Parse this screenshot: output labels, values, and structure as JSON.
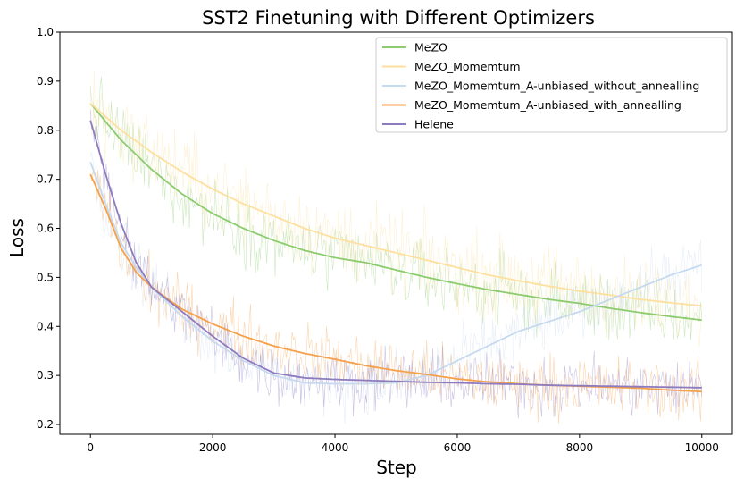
{
  "chart_data": {
    "type": "line",
    "title": "SST2 Finetuning with Different Optimizers",
    "xlabel": "Step",
    "ylabel": "Loss",
    "xlim": [
      -500,
      10500
    ],
    "ylim": [
      0.18,
      1.0
    ],
    "xticks": [
      0,
      2000,
      4000,
      6000,
      8000,
      10000
    ],
    "xtick_labels": [
      "0",
      "2000",
      "4000",
      "6000",
      "8000",
      "10000"
    ],
    "yticks": [
      0.2,
      0.3,
      0.4,
      0.5,
      0.6,
      0.7,
      0.8,
      0.9,
      1.0
    ],
    "ytick_labels": [
      "0.2",
      "0.3",
      "0.4",
      "0.5",
      "0.6",
      "0.7",
      "0.8",
      "0.9",
      "1.0"
    ],
    "grid": false,
    "legend_position": "top-right",
    "series": [
      {
        "name": "MeZO",
        "color": "#8ccb6e",
        "noise": 0.07,
        "x": [
          0,
          500,
          1000,
          1500,
          2000,
          2500,
          3000,
          3500,
          4000,
          4500,
          5000,
          5500,
          6000,
          6500,
          7000,
          7500,
          8000,
          8500,
          9000,
          9500,
          10000
        ],
        "values": [
          0.855,
          0.78,
          0.72,
          0.67,
          0.63,
          0.6,
          0.575,
          0.555,
          0.54,
          0.53,
          0.515,
          0.5,
          0.487,
          0.475,
          0.465,
          0.455,
          0.447,
          0.437,
          0.428,
          0.42,
          0.413
        ]
      },
      {
        "name": "MeZO_Momemtum",
        "color": "#fde09f",
        "noise": 0.08,
        "x": [
          0,
          500,
          1000,
          1500,
          2000,
          2500,
          3000,
          3500,
          4000,
          4500,
          5000,
          5500,
          6000,
          6500,
          7000,
          7500,
          8000,
          8500,
          9000,
          9500,
          10000
        ],
        "values": [
          0.855,
          0.8,
          0.755,
          0.715,
          0.68,
          0.65,
          0.625,
          0.6,
          0.58,
          0.565,
          0.55,
          0.535,
          0.52,
          0.505,
          0.493,
          0.482,
          0.472,
          0.464,
          0.455,
          0.448,
          0.442
        ]
      },
      {
        "name": "MeZO_Momemtum_A-unbiased_without_annealling",
        "color": "#c6d9ee",
        "noise": 0.06,
        "x": [
          0,
          250,
          500,
          750,
          1000,
          1500,
          2000,
          2500,
          3000,
          3500,
          4000,
          4500,
          5000,
          5500,
          6000,
          6500,
          7000,
          7500,
          8000,
          8500,
          9000,
          9500,
          10000
        ],
        "values": [
          0.735,
          0.65,
          0.57,
          0.52,
          0.48,
          0.42,
          0.37,
          0.33,
          0.3,
          0.285,
          0.283,
          0.283,
          0.285,
          0.3,
          0.33,
          0.36,
          0.39,
          0.41,
          0.43,
          0.455,
          0.48,
          0.505,
          0.525
        ]
      },
      {
        "name": "MeZO_Momemtum_A-unbiased_with_annealling",
        "color": "#f5a04a",
        "noise": 0.06,
        "x": [
          0,
          250,
          500,
          750,
          1000,
          1500,
          2000,
          2500,
          3000,
          3500,
          4000,
          4500,
          5000,
          5500,
          6000,
          6500,
          7000,
          7500,
          8000,
          8500,
          9000,
          9500,
          10000
        ],
        "values": [
          0.71,
          0.64,
          0.56,
          0.51,
          0.48,
          0.435,
          0.405,
          0.38,
          0.36,
          0.345,
          0.333,
          0.32,
          0.31,
          0.302,
          0.293,
          0.287,
          0.283,
          0.28,
          0.278,
          0.276,
          0.274,
          0.27,
          0.267
        ]
      },
      {
        "name": "Helene",
        "color": "#8c7bbf",
        "noise": 0.06,
        "x": [
          0,
          250,
          500,
          750,
          1000,
          1500,
          2000,
          2500,
          3000,
          3500,
          4000,
          4500,
          5000,
          5500,
          6000,
          6500,
          7000,
          7500,
          8000,
          8500,
          9000,
          9500,
          10000
        ],
        "values": [
          0.82,
          0.71,
          0.61,
          0.53,
          0.48,
          0.43,
          0.38,
          0.335,
          0.305,
          0.295,
          0.292,
          0.29,
          0.288,
          0.286,
          0.285,
          0.283,
          0.282,
          0.28,
          0.279,
          0.278,
          0.277,
          0.276,
          0.275
        ]
      }
    ]
  }
}
